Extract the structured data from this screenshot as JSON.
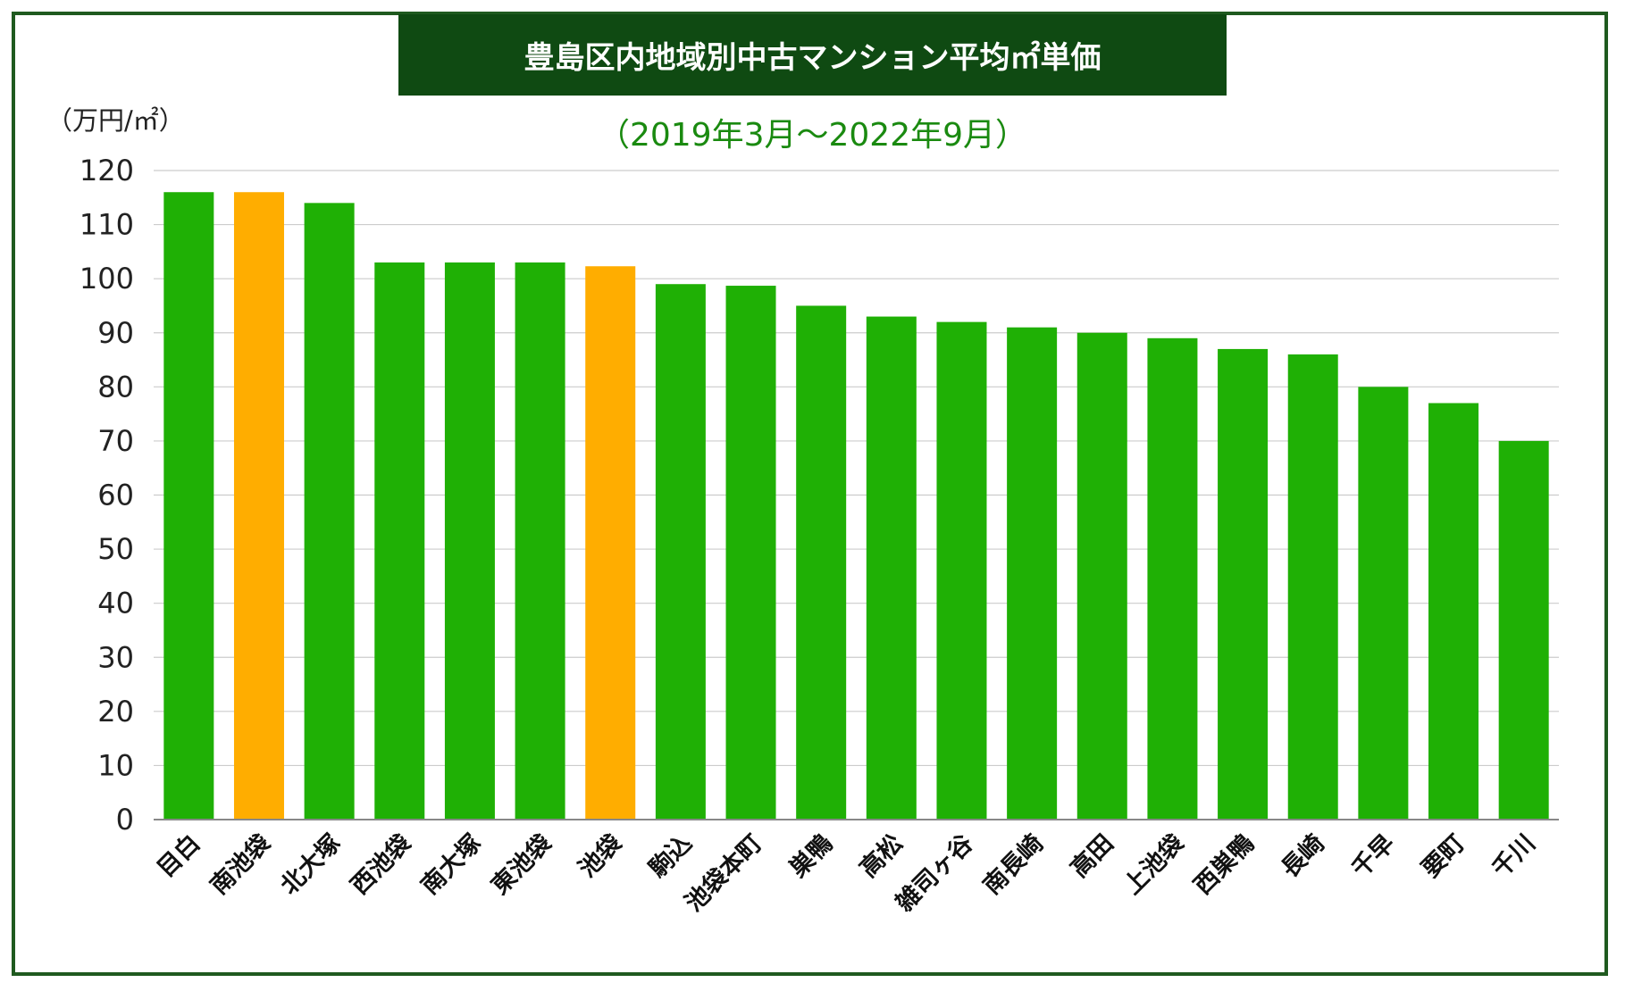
{
  "chart_data": {
    "type": "bar",
    "title": "豊島区内地域別中古マンション平均㎡単価",
    "subtitle": "（2019年3月〜2022年9月）",
    "ylabel": "（万円/㎡）",
    "ylim": [
      0,
      120
    ],
    "yticks": [
      "0",
      "10",
      "20",
      "30",
      "40",
      "50",
      "60",
      "70",
      "80",
      "90",
      "100",
      "110",
      "120"
    ],
    "grid": true,
    "colors": {
      "default": "#1fb005",
      "highlight": "#ffad00",
      "grid": "#cccccc",
      "axis": "#888888"
    },
    "categories": [
      "目白",
      "南池袋",
      "北大塚",
      "西池袋",
      "南大塚",
      "東池袋",
      "池袋",
      "駒込",
      "池袋本町",
      "巣鴨",
      "高松",
      "雑司ヶ谷",
      "南長崎",
      "高田",
      "上池袋",
      "西巣鴨",
      "長崎",
      "千早",
      "要町",
      "千川"
    ],
    "values": [
      116,
      116,
      114,
      103,
      103,
      103,
      102.3,
      99,
      98.7,
      95,
      93,
      92,
      91,
      90,
      89,
      87,
      86,
      80,
      77,
      70
    ],
    "highlight": [
      false,
      true,
      false,
      false,
      false,
      false,
      true,
      false,
      false,
      false,
      false,
      false,
      false,
      false,
      false,
      false,
      false,
      false,
      false,
      false
    ]
  }
}
